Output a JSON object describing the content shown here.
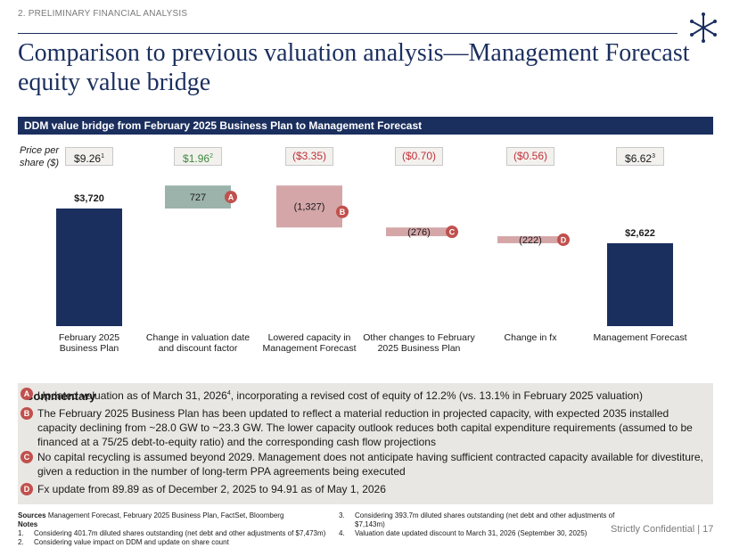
{
  "header": {
    "section_label": "2. PRELIMINARY FINANCIAL ANALYSIS",
    "title": "Comparison to previous valuation analysis—Management Forecast equity value bridge"
  },
  "banner": "DDM value bridge from February 2025 Business Plan to Management Forecast",
  "price_per_share": {
    "label_line1": "Price per",
    "label_line2": "share ($)",
    "values": [
      {
        "text": "$9.26",
        "sup": "1",
        "color": "#1a1a1a"
      },
      {
        "text": "$1.96",
        "sup": "2",
        "color": "#3c8a3c"
      },
      {
        "text": "($3.35)",
        "sup": "",
        "color": "#c0313a"
      },
      {
        "text": "($0.70)",
        "sup": "",
        "color": "#c0313a"
      },
      {
        "text": "($0.56)",
        "sup": "",
        "color": "#c0313a"
      },
      {
        "text": "$6.62",
        "sup": "3",
        "color": "#1a1a1a"
      }
    ]
  },
  "chart_data": {
    "type": "bar",
    "subtype": "waterfall",
    "categories": [
      [
        "February 2025",
        "Business Plan"
      ],
      [
        "Change in valuation date",
        "and discount factor"
      ],
      [
        "Lowered capacity in",
        "Management Forecast"
      ],
      [
        "Other changes to February",
        "2025 Business Plan"
      ],
      [
        "Change in fx"
      ],
      [
        "Management Forecast"
      ]
    ],
    "values": [
      3720,
      727,
      -1327,
      -276,
      -222,
      2622
    ],
    "kinds": [
      "total",
      "delta",
      "delta",
      "delta",
      "delta",
      "total"
    ],
    "data_labels": [
      "$3,720",
      "727",
      "(1,327)",
      "(276)",
      "(222)",
      "$2,622"
    ],
    "badges": [
      "",
      "A",
      "B",
      "C",
      "D",
      ""
    ],
    "colors": {
      "total": "#1b2f5e",
      "increase": "#9bb3ab",
      "decrease": "#d4a6a8",
      "badge": "#c0504d"
    }
  },
  "commentary": {
    "title": "Commentary",
    "items": [
      {
        "badge": "A",
        "pre": "Updated valuation as of March 31, 2026",
        "sup": "4",
        "post": ", incorporating a revised cost of equity of 12.2% (vs. 13.1% in February 2025 valuation)"
      },
      {
        "badge": "B",
        "pre": "The February 2025 Business Plan has been updated to reflect a material reduction in projected capacity, with expected 2035 installed capacity declining from ~28.0 GW to ~23.3 GW. The lower capacity outlook reduces both capital expenditure requirements (assumed to be financed at a 75/25 debt-to-equity ratio) and the corresponding cash flow projections",
        "sup": "",
        "post": ""
      },
      {
        "badge": "C",
        "pre": "No capital recycling is assumed beyond 2029. Management does not anticipate having sufficient contracted capacity available for divestiture, given a reduction in the number of long-term PPA agreements being executed",
        "sup": "",
        "post": ""
      },
      {
        "badge": "D",
        "pre": "Fx update from 89.89 as of December 2, 2025 to 94.91 as of May 1, 2026",
        "sup": "",
        "post": ""
      }
    ]
  },
  "footer": {
    "sources_label": "Sources",
    "sources_text": "Management Forecast, February 2025 Business Plan, FactSet, Bloomberg",
    "notes_label": "Notes",
    "notes": [
      {
        "num": "1.",
        "text": "Considering 401.7m diluted shares outstanding (net debt and other adjustments of $7,473m)"
      },
      {
        "num": "2.",
        "text": "Considering value impact on DDM and update on share count"
      },
      {
        "num": "3.",
        "text": "Considering 393.7m diluted shares outstanding (net debt and other adjustments of $7,143m)"
      },
      {
        "num": "4.",
        "text": "Valuation date updated discount to March 31, 2026 (September 30, 2025)"
      }
    ],
    "confidential": "Strictly Confidential | 17"
  }
}
